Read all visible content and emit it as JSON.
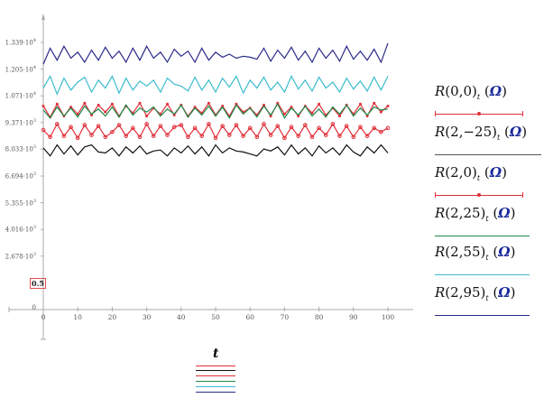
{
  "chart_data": {
    "type": "line",
    "title": "",
    "xlabel": "t",
    "ylabel": "",
    "xlim": [
      0,
      100
    ],
    "ylim": [
      0,
      13390
    ],
    "x_ticks": [
      "0",
      "10",
      "20",
      "30",
      "40",
      "50",
      "60",
      "70",
      "80",
      "90",
      "100"
    ],
    "y_ticks": [
      {
        "m": "1.339",
        "e": "4"
      },
      {
        "m": "1.205",
        "e": "4"
      },
      {
        "m": "1.071",
        "e": "4"
      },
      {
        "m": "9.371",
        "e": "3"
      },
      {
        "m": "8.033",
        "e": "3"
      },
      {
        "m": "6.694",
        "e": "3"
      },
      {
        "m": "5.355",
        "e": "3"
      },
      {
        "m": "4.016",
        "e": "3"
      },
      {
        "m": "2.678",
        "e": "3"
      }
    ],
    "y_marker_label": "0.5",
    "y_zero_label": "0",
    "x": [
      0,
      2,
      4,
      6,
      8,
      10,
      12,
      14,
      16,
      18,
      20,
      22,
      24,
      26,
      28,
      30,
      32,
      34,
      36,
      38,
      40,
      42,
      44,
      46,
      48,
      50,
      52,
      54,
      56,
      58,
      60,
      62,
      64,
      66,
      68,
      70,
      72,
      74,
      76,
      78,
      80,
      82,
      84,
      86,
      88,
      90,
      92,
      94,
      96,
      98,
      100
    ],
    "series": [
      {
        "name": "R(0,0)_t (Ω)",
        "color": "#e0303a",
        "marker": "dot",
        "values": [
          10200,
          9650,
          10300,
          9700,
          10150,
          9800,
          10350,
          9750,
          10250,
          9900,
          10300,
          9700,
          10200,
          9850,
          10350,
          9700,
          10100,
          9800,
          10300,
          9750,
          10250,
          9700,
          10150,
          9850,
          10350,
          9750,
          10200,
          9700,
          10300,
          9900,
          10100,
          9750,
          10250,
          9700,
          10350,
          9800,
          10150,
          9700,
          10200,
          9850,
          10300,
          9750,
          10100,
          9700,
          10250,
          9800,
          10300,
          9700,
          10350,
          9900,
          10200
        ]
      },
      {
        "name": "R(2,−25)_t (Ω)",
        "color": "#111111",
        "marker": "none",
        "values": [
          8100,
          7700,
          8250,
          7800,
          8200,
          7750,
          8150,
          8250,
          7900,
          7850,
          8100,
          7700,
          8150,
          7850,
          8200,
          7800,
          7950,
          8000,
          7700,
          8100,
          7850,
          8200,
          7800,
          8150,
          7700,
          8250,
          7850,
          8100,
          7950,
          7900,
          7800,
          7700,
          8050,
          7950,
          8150,
          7750,
          8250,
          7800,
          8100,
          7700,
          8200,
          7850,
          8100,
          7750,
          8250,
          7900,
          7700,
          8150,
          7850,
          8250,
          7850
        ]
      },
      {
        "name": "R(2,0)_t (Ω)",
        "color": "#e0303a",
        "marker": "circle",
        "values": [
          9000,
          8650,
          9300,
          8700,
          9150,
          8600,
          9250,
          8750,
          9200,
          8650,
          8900,
          9250,
          8700,
          9100,
          8650,
          9300,
          8700,
          9200,
          8750,
          9150,
          9250,
          8650,
          9100,
          8700,
          9300,
          8600,
          9200,
          8750,
          9250,
          8700,
          9100,
          8650,
          9300,
          8750,
          9200,
          8600,
          9150,
          8700,
          9250,
          8650,
          9100,
          8750,
          9300,
          8700,
          9200,
          8650,
          9150,
          8700,
          9100,
          8900,
          9100
        ]
      },
      {
        "name": "R(2,25)_t (Ω)",
        "color": "#1e8a4a",
        "marker": "none",
        "values": [
          10000,
          9600,
          10150,
          9700,
          10100,
          9650,
          10200,
          9800,
          10050,
          9700,
          10150,
          9650,
          10250,
          9750,
          10100,
          9900,
          10150,
          9700,
          10050,
          9800,
          10250,
          9650,
          10100,
          9750,
          10200,
          9700,
          10150,
          9600,
          10250,
          9800,
          10100,
          9650,
          10200,
          9750,
          10300,
          9600,
          10100,
          9750,
          10200,
          9700,
          10050,
          9650,
          10150,
          9800,
          10250,
          9700,
          10100,
          9750,
          10150,
          10000,
          10050
        ]
      },
      {
        "name": "R(2,55)_t (Ω)",
        "color": "#3bbccc",
        "marker": "none",
        "values": [
          11100,
          11700,
          10800,
          11600,
          11000,
          11400,
          11650,
          10900,
          11500,
          11100,
          11700,
          10850,
          11600,
          11000,
          11450,
          11200,
          11500,
          10900,
          11600,
          11300,
          11200,
          10950,
          11650,
          11000,
          11500,
          10900,
          11600,
          11150,
          11700,
          10850,
          11500,
          11100,
          11650,
          11000,
          11400,
          10900,
          11700,
          11050,
          11500,
          10950,
          11650,
          11100,
          11400,
          10900,
          11600,
          11050,
          11450,
          10950,
          11650,
          11000,
          11700
        ]
      },
      {
        "name": "R(2,95)_t (Ω)",
        "color": "#2a2a8a",
        "marker": "none",
        "values": [
          12300,
          13100,
          12500,
          13200,
          12600,
          12900,
          12400,
          13000,
          12500,
          13150,
          12600,
          12950,
          12400,
          13100,
          12500,
          13200,
          12600,
          12900,
          12400,
          13050,
          12700,
          12950,
          12400,
          13100,
          12500,
          12900,
          12650,
          12800,
          12600,
          12700,
          12650,
          12550,
          13100,
          12450,
          13000,
          12600,
          13150,
          12500,
          12950,
          12400,
          13100,
          12600,
          13000,
          12450,
          13200,
          12550,
          12950,
          12500,
          13050,
          12400,
          13350
        ]
      }
    ],
    "grid": false,
    "legend_position": "right"
  },
  "legend": [
    {
      "fn": "R",
      "args": "(0,0)",
      "sub": "t",
      "unit": "Ω",
      "color": "#e0303a"
    },
    {
      "fn": "R",
      "args": "(2,−25)",
      "sub": "t",
      "unit": "Ω",
      "color": "#555555"
    },
    {
      "fn": "R",
      "args": "(2,0)",
      "sub": "t",
      "unit": "Ω",
      "color": "#e0303a"
    },
    {
      "fn": "R",
      "args": "(2,25)",
      "sub": "t",
      "unit": "Ω",
      "color": "#1e8a4a"
    },
    {
      "fn": "R",
      "args": "(2,55)",
      "sub": "t",
      "unit": "Ω",
      "color": "#3bbccc"
    },
    {
      "fn": "R",
      "args": "(2,95)",
      "sub": "t",
      "unit": "Ω",
      "color": "#2a2a8a"
    }
  ],
  "x_axis_var": "t"
}
